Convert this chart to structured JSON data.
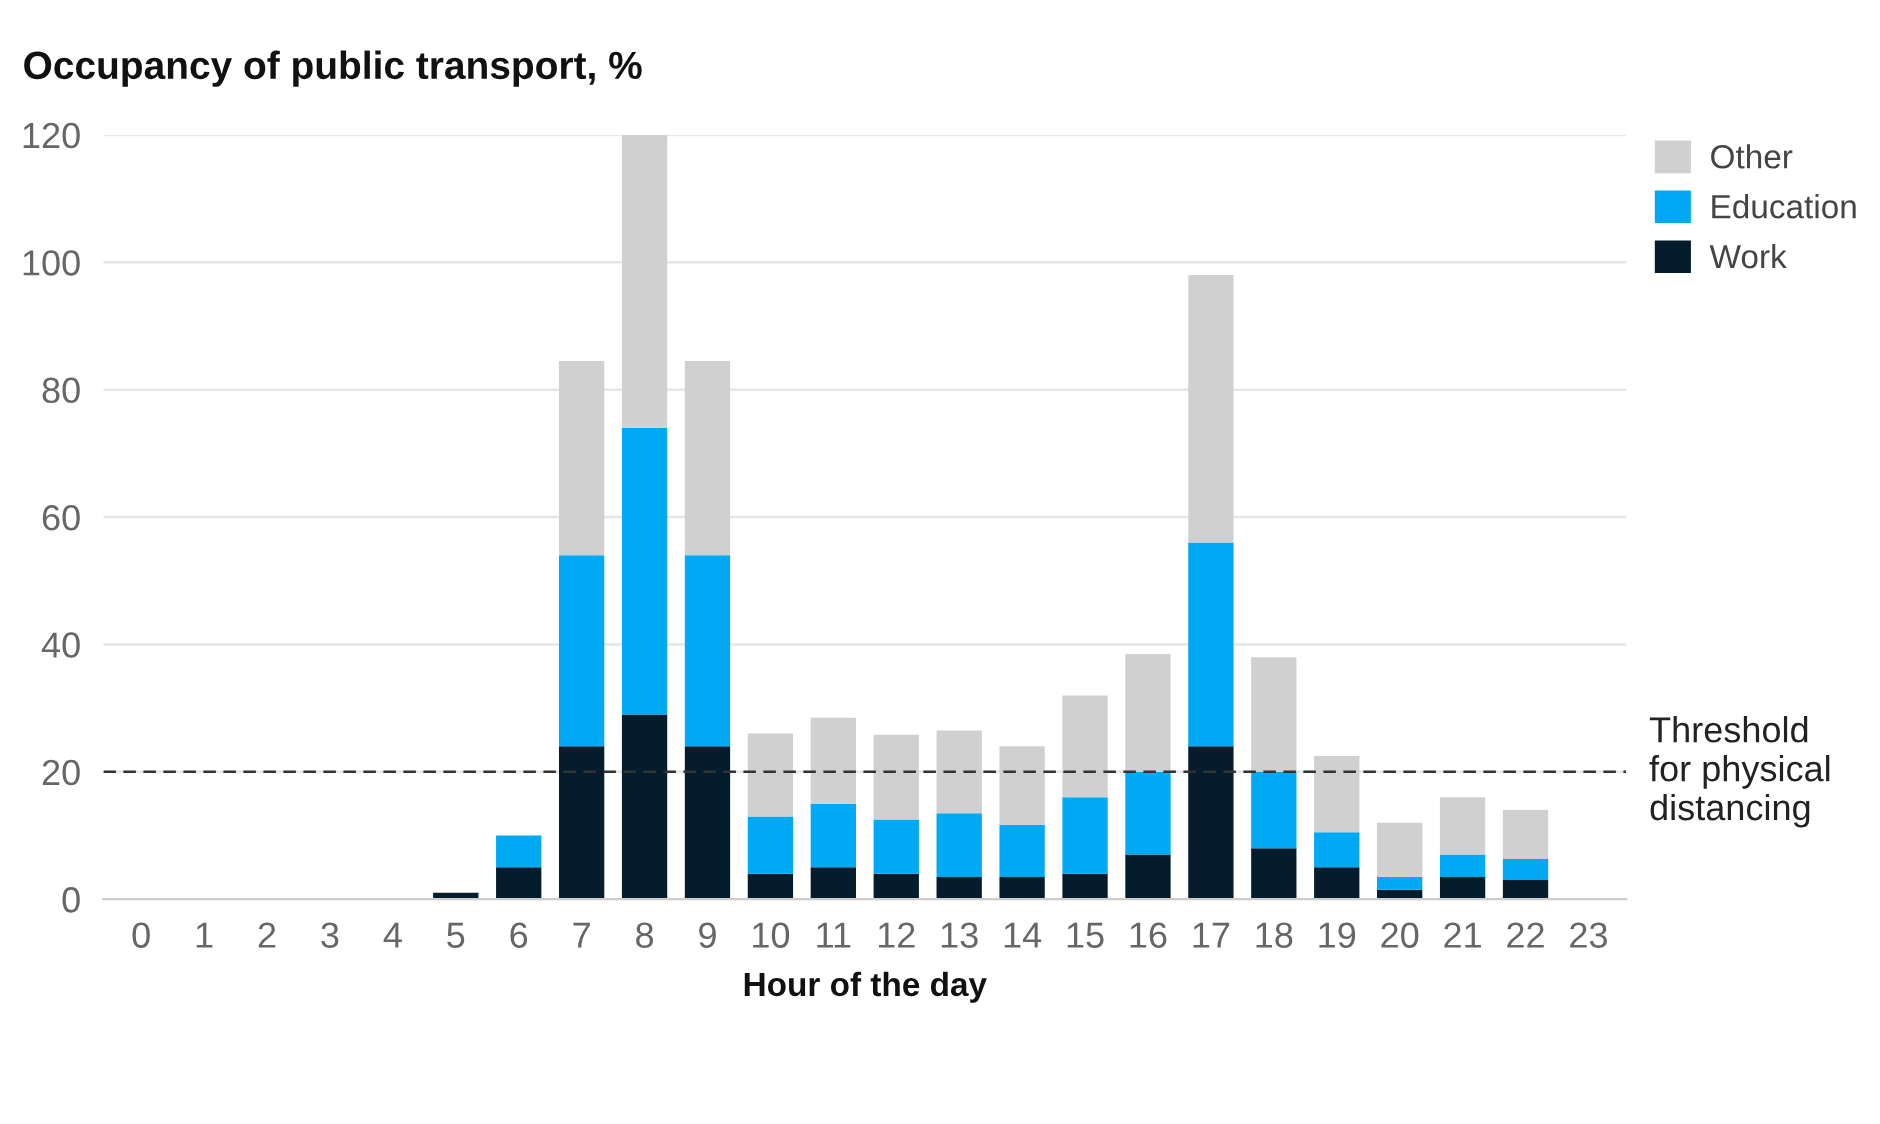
{
  "chart_data": {
    "type": "bar",
    "title": "Occupancy of public transport, %",
    "xlabel": "Hour of the day",
    "categories": [
      "0",
      "1",
      "2",
      "3",
      "4",
      "5",
      "6",
      "7",
      "8",
      "9",
      "10",
      "11",
      "12",
      "13",
      "14",
      "15",
      "16",
      "17",
      "18",
      "19",
      "20",
      "21",
      "22",
      "23"
    ],
    "stacked": true,
    "series": [
      {
        "name": "Work",
        "color": "#051c2c",
        "values": [
          0,
          0,
          0,
          0,
          0,
          1,
          5,
          24,
          29,
          24,
          4,
          5,
          4,
          3.5,
          3.5,
          4,
          7,
          24,
          8,
          5,
          1.5,
          3.5,
          3,
          0
        ]
      },
      {
        "name": "Education",
        "color": "#00a9f4",
        "values": [
          0,
          0,
          0,
          0,
          0,
          0,
          5,
          30,
          45,
          30,
          9,
          10,
          8.5,
          10,
          8.2,
          12,
          13,
          32,
          12,
          5.5,
          2,
          3.5,
          3.3,
          0
        ]
      },
      {
        "name": "Other",
        "color": "#d0d0d0",
        "values": [
          0.2,
          0,
          0.2,
          0,
          0.2,
          0,
          0,
          30.5,
          46,
          30.5,
          13,
          13.5,
          13.3,
          13,
          12.3,
          16,
          18.5,
          42,
          18,
          12,
          8.5,
          9,
          7.7,
          0
        ]
      }
    ],
    "ylim": [
      0,
      120
    ],
    "yticks": [
      0,
      20,
      40,
      60,
      80,
      100,
      120
    ],
    "grid": "y",
    "legend": "top right",
    "ref_lines": [
      {
        "axis": "y",
        "value": 20,
        "label": "Threshold\nfor physical\ndistancing",
        "color": "#333333",
        "line_style": "dashed"
      }
    ]
  }
}
